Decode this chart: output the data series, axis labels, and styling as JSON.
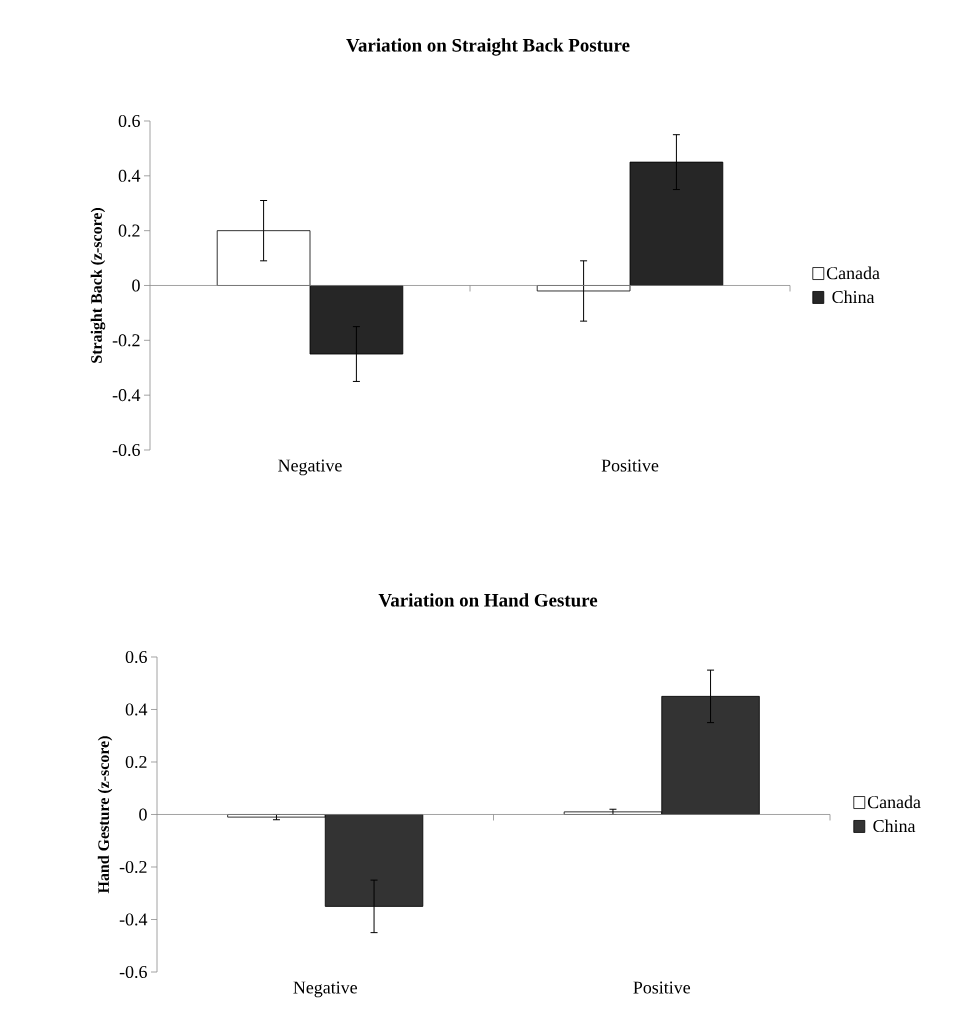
{
  "chart_data": [
    {
      "type": "bar",
      "title": "Variation on Straight Back Posture",
      "ylabel": "Straight Back (z-score)",
      "categories": [
        "Negative",
        "Positive"
      ],
      "series": [
        {
          "name": "Canada",
          "color": "#ffffff",
          "values": [
            0.2,
            -0.02
          ],
          "errors": [
            0.11,
            0.11
          ]
        },
        {
          "name": "China",
          "color": "#262626",
          "values": [
            -0.25,
            0.45
          ],
          "errors": [
            0.1,
            0.1
          ]
        }
      ],
      "ref_lines": [
        {
          "axis": "y",
          "value": 0,
          "color": "#8c8c8c"
        }
      ],
      "ylim": [
        -0.6,
        0.6
      ],
      "yticks": [
        -0.6,
        -0.4,
        -0.2,
        0,
        0.2,
        0.4,
        0.6
      ],
      "legend": "right",
      "grid": false
    },
    {
      "type": "bar",
      "title": "Variation on Hand Gesture",
      "ylabel": "Hand Gesture (z-score)",
      "categories": [
        "Negative",
        "Positive"
      ],
      "series": [
        {
          "name": "Canada",
          "color": "#ffffff",
          "values": [
            -0.01,
            0.01
          ],
          "errors": [
            0.01,
            0.01
          ]
        },
        {
          "name": "China",
          "color": "#333333",
          "values": [
            -0.35,
            0.45
          ],
          "errors": [
            0.1,
            0.1
          ]
        }
      ],
      "ref_lines": [
        {
          "axis": "y",
          "value": 0,
          "color": "#8c8c8c"
        }
      ],
      "ylim": [
        -0.6,
        0.6
      ],
      "yticks": [
        -0.6,
        -0.4,
        -0.2,
        0,
        0.2,
        0.4,
        0.6
      ],
      "legend": "right",
      "grid": false
    }
  ]
}
